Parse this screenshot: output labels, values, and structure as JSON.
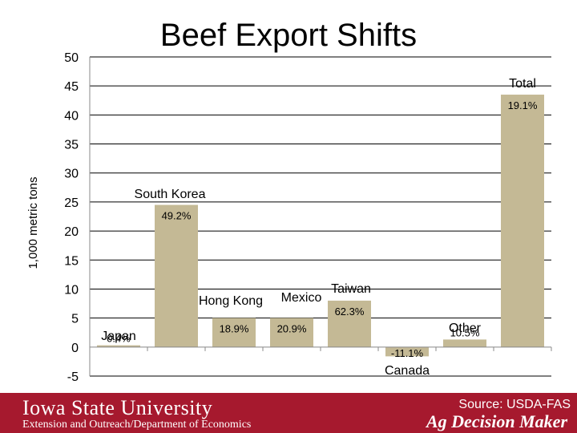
{
  "chart_data": {
    "type": "bar",
    "title": "Beef Export Shifts",
    "ylabel": "1,000 metric tons",
    "xlabel": "",
    "ylim": [
      -5,
      50
    ],
    "yticks": [
      50,
      45,
      40,
      35,
      30,
      25,
      20,
      15,
      10,
      5,
      0,
      -5
    ],
    "grid": true,
    "categories": [
      "Japan",
      "South Korea",
      "Hong Kong",
      "Mexico",
      "Taiwan",
      "Canada",
      "Other",
      "Total"
    ],
    "values": [
      0.3,
      24.5,
      5.0,
      5.0,
      8.0,
      -1.6,
      1.3,
      43.5
    ],
    "data_labels": [
      "0.4%",
      "49.2%",
      "18.9%",
      "20.9%",
      "62.3%",
      "-11.1%",
      "10.5%",
      "19.1%"
    ],
    "bar_color": "#c4b995"
  },
  "footer": {
    "university": "Iowa State University",
    "department": "Extension and Outreach/Department of Economics",
    "source": "Source: USDA-FAS",
    "brand": "Ag Decision Maker",
    "background": "#a6192e"
  }
}
